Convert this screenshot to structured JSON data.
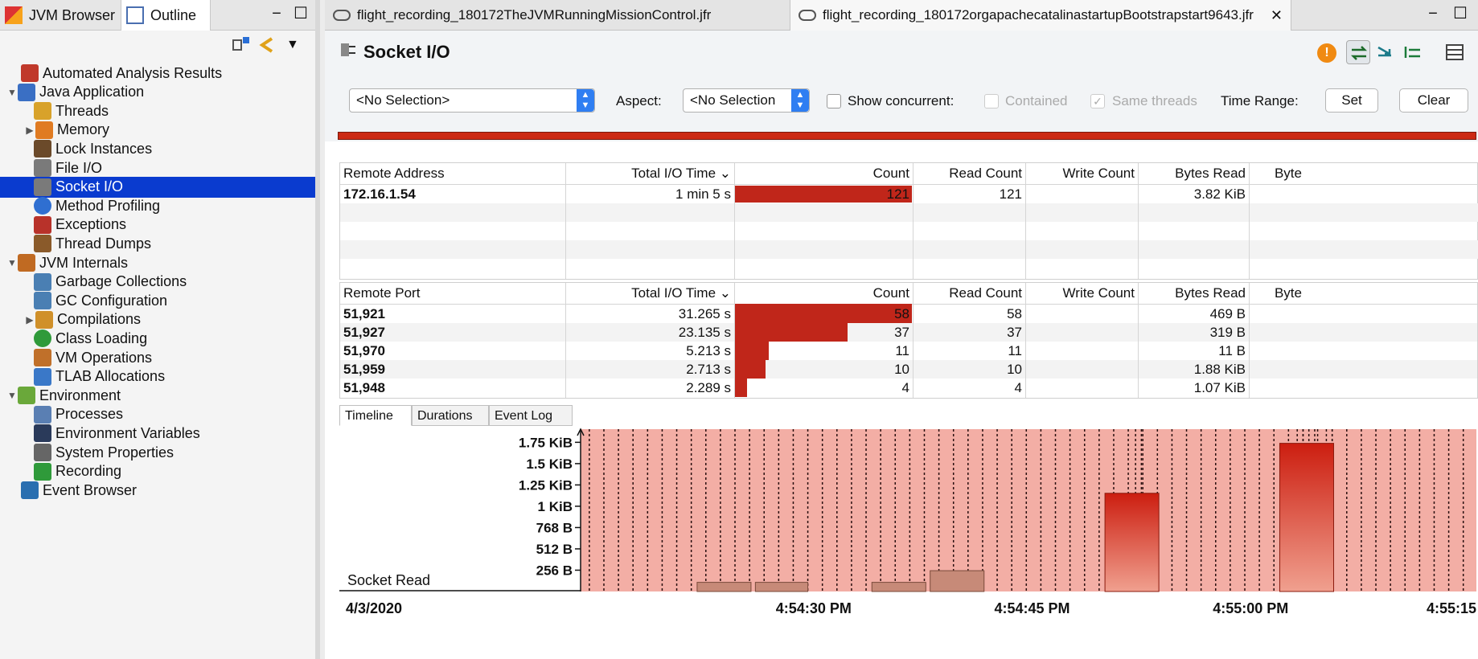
{
  "left_panel": {
    "tabs": [
      {
        "label": "JVM Browser"
      },
      {
        "label": "Outline"
      }
    ],
    "tree": [
      {
        "label": "Automated Analysis Results",
        "icon": "analysis-icon",
        "indent": 0,
        "expand": ""
      },
      {
        "label": "Java Application",
        "icon": "java-app-icon",
        "indent": 0,
        "expand": "▼"
      },
      {
        "label": "Threads",
        "icon": "threads-icon",
        "indent": 1,
        "expand": ""
      },
      {
        "label": "Memory",
        "icon": "memory-icon",
        "indent": 1,
        "expand": "▶"
      },
      {
        "label": "Lock Instances",
        "icon": "lock-icon",
        "indent": 1,
        "expand": ""
      },
      {
        "label": "File I/O",
        "icon": "file-io-icon",
        "indent": 1,
        "expand": ""
      },
      {
        "label": "Socket I/O",
        "icon": "socket-io-icon",
        "indent": 1,
        "expand": "",
        "selected": true
      },
      {
        "label": "Method Profiling",
        "icon": "method-profiling-icon",
        "indent": 1,
        "expand": ""
      },
      {
        "label": "Exceptions",
        "icon": "exceptions-icon",
        "indent": 1,
        "expand": ""
      },
      {
        "label": "Thread Dumps",
        "icon": "thread-dumps-icon",
        "indent": 1,
        "expand": ""
      },
      {
        "label": "JVM Internals",
        "icon": "jvm-internals-icon",
        "indent": 0,
        "expand": "▼"
      },
      {
        "label": "Garbage Collections",
        "icon": "gc-icon",
        "indent": 1,
        "expand": ""
      },
      {
        "label": "GC Configuration",
        "icon": "gc-config-icon",
        "indent": 1,
        "expand": ""
      },
      {
        "label": "Compilations",
        "icon": "compilations-icon",
        "indent": 1,
        "expand": "▶"
      },
      {
        "label": "Class Loading",
        "icon": "class-loading-icon",
        "indent": 1,
        "expand": ""
      },
      {
        "label": "VM Operations",
        "icon": "vm-operations-icon",
        "indent": 1,
        "expand": ""
      },
      {
        "label": "TLAB Allocations",
        "icon": "tlab-icon",
        "indent": 1,
        "expand": ""
      },
      {
        "label": "Environment",
        "icon": "environment-icon",
        "indent": 0,
        "expand": "▼"
      },
      {
        "label": "Processes",
        "icon": "processes-icon",
        "indent": 1,
        "expand": ""
      },
      {
        "label": "Environment Variables",
        "icon": "env-vars-icon",
        "indent": 1,
        "expand": ""
      },
      {
        "label": "System Properties",
        "icon": "system-properties-icon",
        "indent": 1,
        "expand": ""
      },
      {
        "label": "Recording",
        "icon": "recording-icon",
        "indent": 1,
        "expand": ""
      },
      {
        "label": "Event Browser",
        "icon": "event-browser-icon",
        "indent": 0,
        "expand": ""
      }
    ]
  },
  "editor_tabs": [
    {
      "label": "flight_recording_180172TheJVMRunningMissionControl.jfr"
    },
    {
      "label": "flight_recording_180172orgapachecatalinastartupBootstrapstart9643.jfr"
    }
  ],
  "page": {
    "title": "Socket I/O",
    "selection_value": "<No Selection>",
    "aspect_label": "Aspect:",
    "aspect_value": "<No Selection",
    "show_concurrent_label": "Show concurrent:",
    "contained_label": "Contained",
    "same_threads_label": "Same threads",
    "time_range_label": "Time Range:",
    "set_label": "Set",
    "clear_label": "Clear"
  },
  "table_address": {
    "headers": [
      "Remote Address",
      "Total I/O Time ⌄",
      "Count",
      "Read Count",
      "Write Count",
      "Bytes Read",
      "Byte"
    ],
    "rows": [
      {
        "key": "172.16.1.54",
        "time": "1 min 5 s",
        "count": "121",
        "count_value": 121,
        "read": "121",
        "write": "",
        "bytes": "3.82 KiB"
      }
    ]
  },
  "table_port": {
    "headers": [
      "Remote Port",
      "Total I/O Time ⌄",
      "Count",
      "Read Count",
      "Write Count",
      "Bytes Read",
      "Byte"
    ],
    "rows": [
      {
        "key": "51,921",
        "time": "31.265 s",
        "count": "58",
        "count_value": 58,
        "read": "58",
        "write": "",
        "bytes": "469 B"
      },
      {
        "key": "51,927",
        "time": "23.135 s",
        "count": "37",
        "count_value": 37,
        "read": "37",
        "write": "",
        "bytes": "319 B"
      },
      {
        "key": "51,970",
        "time": "5.213 s",
        "count": "11",
        "count_value": 11,
        "read": "11",
        "write": "",
        "bytes": "11 B"
      },
      {
        "key": "51,959",
        "time": "2.713 s",
        "count": "10",
        "count_value": 10,
        "read": "10",
        "write": "",
        "bytes": "1.88 KiB"
      },
      {
        "key": "51,948",
        "time": "2.289 s",
        "count": "4",
        "count_value": 4,
        "read": "4",
        "write": "",
        "bytes": "1.07 KiB"
      }
    ]
  },
  "bottom_tabs": [
    {
      "label": "Timeline"
    },
    {
      "label": "Durations"
    },
    {
      "label": "Event Log"
    }
  ],
  "chart_data": {
    "type": "bar",
    "series_label": "Socket Read",
    "date_label": "4/3/2020",
    "y_ticks": [
      "256 B",
      "512 B",
      "768 B",
      "1 KiB",
      "1.25 KiB",
      "1.5 KiB",
      "1.75 KiB"
    ],
    "y_tick_values": [
      256,
      512,
      768,
      1024,
      1280,
      1536,
      1792
    ],
    "x_ticks": [
      "4:54:30 PM",
      "4:54:45 PM",
      "4:55:00 PM",
      "4:55:15"
    ],
    "x_tick_seconds": [
      30,
      45,
      60,
      75
    ],
    "x_range": [
      14,
      75.5
    ],
    "y_range": [
      0,
      1950
    ],
    "bars": [
      {
        "start": 22.0,
        "end": 25.7,
        "value": 110
      },
      {
        "start": 26.0,
        "end": 29.6,
        "value": 110
      },
      {
        "start": 34.0,
        "end": 37.7,
        "value": 110
      },
      {
        "start": 38.0,
        "end": 41.7,
        "value": 250
      },
      {
        "start": 50.0,
        "end": 53.7,
        "value": 1180
      },
      {
        "start": 62.0,
        "end": 65.7,
        "value": 1780
      }
    ],
    "colors": {
      "bg": "#f3aea5",
      "bar_small": "#c78a78",
      "bar_top": "#cc1e10",
      "bar_bottom": "#f0a08f"
    }
  }
}
